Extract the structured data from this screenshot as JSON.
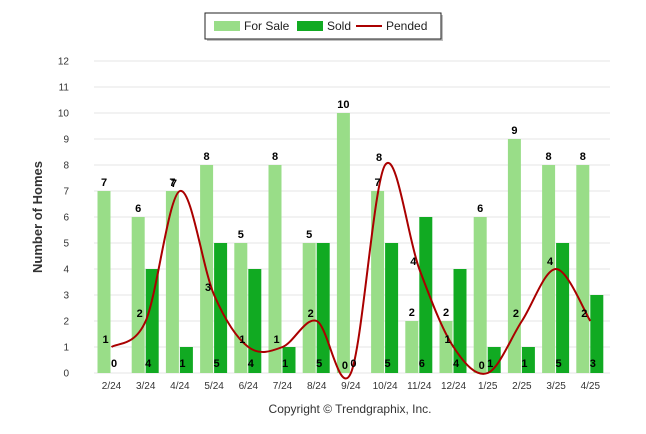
{
  "chart_data": {
    "type": "bar",
    "title": "",
    "ylabel": "Number of Homes",
    "xlabel": "",
    "ylim": [
      0,
      12
    ],
    "yticks": [
      0,
      1,
      2,
      3,
      4,
      5,
      6,
      7,
      8,
      9,
      10,
      11,
      12
    ],
    "grid": true,
    "legend": "top-center",
    "categories": [
      "2/24",
      "3/24",
      "4/24",
      "5/24",
      "6/24",
      "7/24",
      "8/24",
      "9/24",
      "10/24",
      "11/24",
      "12/24",
      "1/25",
      "2/25",
      "3/25",
      "4/25"
    ],
    "series": [
      {
        "name": "For Sale",
        "type": "bar",
        "color": "#99dd88",
        "values": [
          7,
          6,
          7,
          8,
          5,
          8,
          5,
          10,
          7,
          2,
          2,
          6,
          9,
          8,
          8
        ]
      },
      {
        "name": "Sold",
        "type": "bar",
        "color": "#11aa22",
        "values": [
          0,
          4,
          1,
          5,
          4,
          1,
          5,
          0,
          5,
          6,
          4,
          1,
          1,
          5,
          3
        ]
      },
      {
        "name": "Pended",
        "type": "line",
        "color": "#aa0000",
        "values": [
          1,
          2,
          7,
          3,
          1,
          1,
          2,
          0,
          8,
          4,
          1,
          0,
          2,
          4,
          2
        ]
      }
    ],
    "footer": "Copyright © Trendgraphix, Inc."
  }
}
